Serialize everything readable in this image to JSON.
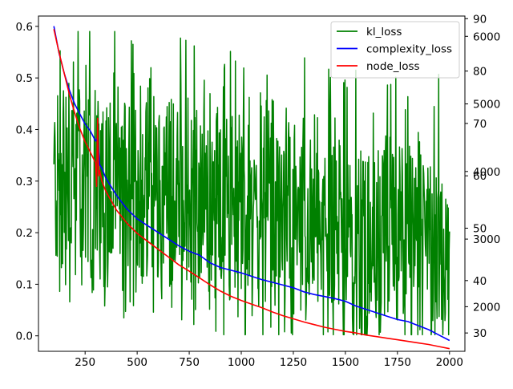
{
  "chart_data": {
    "type": "line",
    "title": "",
    "xlabel": "",
    "ylabel": "",
    "grid": false,
    "legend_position": "top-right",
    "x_range": [
      100,
      2000
    ],
    "xlim": [
      26,
      2074
    ],
    "x_ticks": [
      250,
      500,
      750,
      1000,
      1250,
      1500,
      1750,
      2000
    ],
    "axes": {
      "left": {
        "ylim": [
          -0.03,
          0.62
        ],
        "ticks": [
          "0.0",
          "0.1",
          "0.2",
          "0.3",
          "0.4",
          "0.5",
          "0.6"
        ],
        "tick_values": [
          0.0,
          0.1,
          0.2,
          0.3,
          0.4,
          0.5,
          0.6
        ]
      },
      "right_inner": {
        "ylim": [
          1340,
          6300
        ],
        "ticks": [
          "2000",
          "3000",
          "4000",
          "5000",
          "6000"
        ],
        "tick_values": [
          2000,
          3000,
          4000,
          5000,
          6000
        ]
      },
      "right_outer": {
        "ylim": [
          26.5,
          90.5
        ],
        "ticks": [
          "30",
          "40",
          "50",
          "60",
          "70",
          "80",
          "90"
        ],
        "tick_values": [
          30,
          40,
          50,
          60,
          70,
          80,
          90
        ]
      }
    },
    "series": [
      {
        "name": "kl_loss",
        "color": "#008000",
        "axis": "left",
        "style": "noisy",
        "mean_trend": [
          [
            100,
            0.3
          ],
          [
            500,
            0.28
          ],
          [
            1000,
            0.24
          ],
          [
            1500,
            0.2
          ],
          [
            2000,
            0.17
          ]
        ],
        "min": 0.002,
        "max": 0.59
      },
      {
        "name": "complexity_loss",
        "color": "#0000ff",
        "axis": "right_inner",
        "x": [
          100,
          125,
          150,
          175,
          200,
          225,
          250,
          275,
          300,
          310,
          320,
          330,
          350,
          400,
          450,
          500,
          550,
          600,
          650,
          700,
          750,
          800,
          850,
          900,
          950,
          1000,
          1050,
          1100,
          1150,
          1200,
          1250,
          1300,
          1350,
          1400,
          1450,
          1500,
          1550,
          1600,
          1650,
          1700,
          1750,
          1800,
          1850,
          1900,
          1950,
          2000
        ],
        "values": [
          6150,
          5750,
          5450,
          5200,
          5000,
          4850,
          4700,
          4600,
          4450,
          4500,
          4100,
          4050,
          3900,
          3650,
          3450,
          3300,
          3200,
          3100,
          3000,
          2900,
          2820,
          2760,
          2650,
          2580,
          2540,
          2500,
          2450,
          2400,
          2360,
          2320,
          2280,
          2220,
          2180,
          2150,
          2120,
          2080,
          2010,
          1960,
          1910,
          1860,
          1810,
          1780,
          1720,
          1660,
          1580,
          1500
        ]
      },
      {
        "name": "node_loss",
        "color": "#ff0000",
        "axis": "right_outer",
        "x": [
          100,
          125,
          150,
          175,
          200,
          225,
          250,
          275,
          300,
          305,
          310,
          315,
          320,
          330,
          350,
          400,
          450,
          500,
          550,
          600,
          650,
          700,
          750,
          800,
          850,
          900,
          950,
          1000,
          1050,
          1100,
          1150,
          1200,
          1250,
          1300,
          1350,
          1400,
          1450,
          1500,
          1550,
          1600,
          1650,
          1700,
          1750,
          1800,
          1850,
          1900,
          1950,
          2000
        ],
        "values": [
          88.0,
          83.5,
          79.5,
          75.5,
          72.0,
          69.0,
          66.5,
          64.5,
          62.5,
          58.0,
          71.0,
          60.0,
          61.0,
          59.0,
          57.0,
          53.5,
          51.0,
          49.0,
          47.5,
          46.0,
          44.5,
          43.0,
          41.8,
          40.5,
          39.2,
          38.0,
          37.0,
          36.2,
          35.5,
          34.8,
          34.0,
          33.3,
          32.7,
          32.1,
          31.6,
          31.1,
          30.7,
          30.3,
          30.0,
          29.6,
          29.3,
          29.0,
          28.7,
          28.4,
          28.1,
          27.8,
          27.4,
          27.0
        ]
      }
    ]
  }
}
